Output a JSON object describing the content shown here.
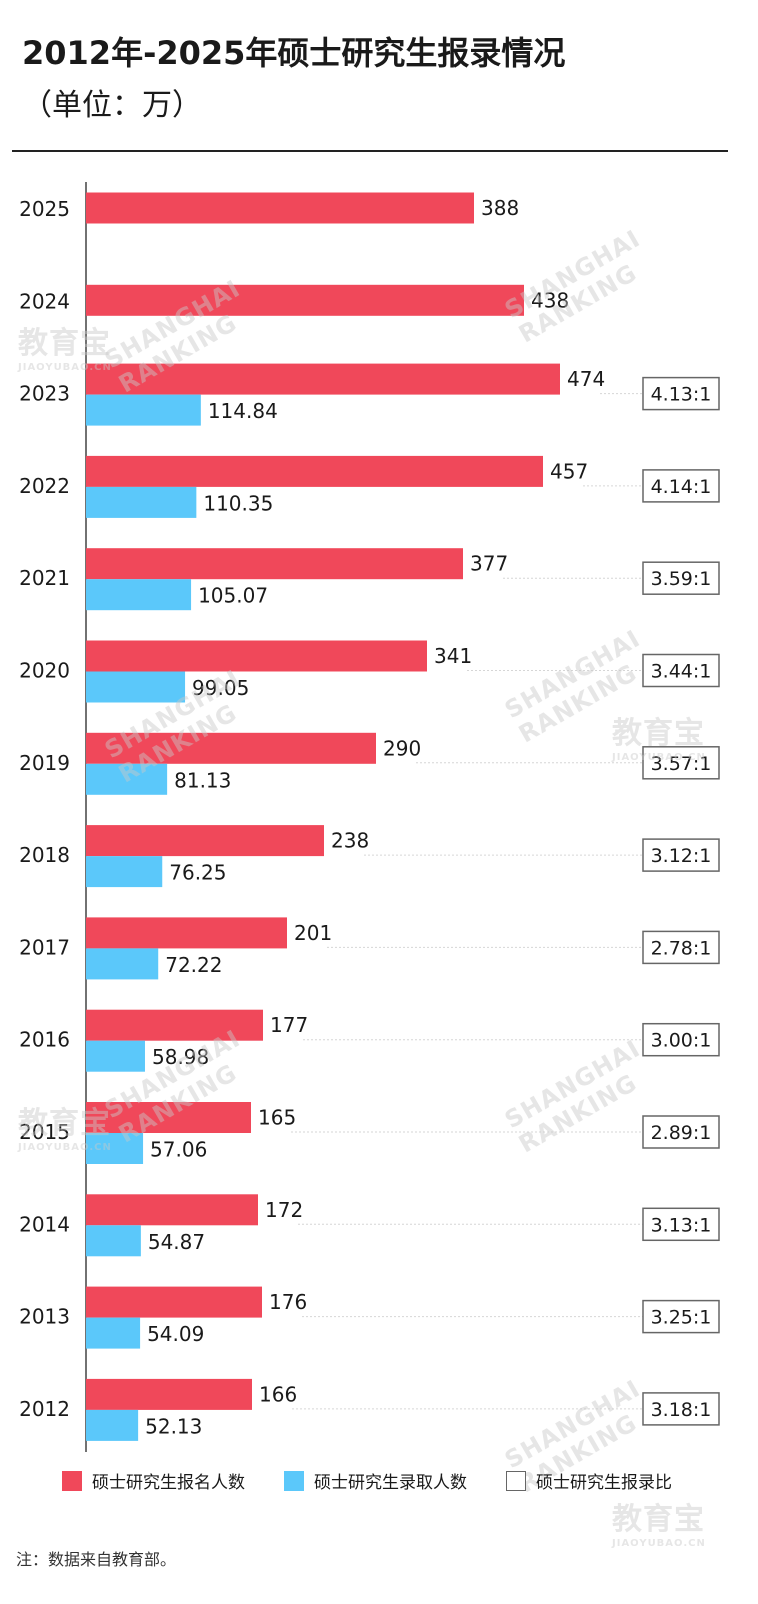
{
  "chart_data": {
    "type": "bar",
    "orientation": "horizontal",
    "title": "2012年-2025年硕士研究生报录情况",
    "subtitle": "（单位：万）",
    "categories": [
      "2025",
      "2024",
      "2023",
      "2022",
      "2021",
      "2020",
      "2019",
      "2018",
      "2017",
      "2016",
      "2015",
      "2014",
      "2013",
      "2012"
    ],
    "series": [
      {
        "name": "硕士研究生报名人数",
        "color": "#f0485a",
        "values": [
          388,
          438,
          474,
          457,
          377,
          341,
          290,
          238,
          201,
          177,
          165,
          172,
          176,
          166
        ]
      },
      {
        "name": "硕士研究生录取人数",
        "color": "#5bc8fa",
        "values": [
          null,
          null,
          114.84,
          110.35,
          105.07,
          99.05,
          81.13,
          76.25,
          72.22,
          58.98,
          57.06,
          54.87,
          54.09,
          52.13
        ]
      }
    ],
    "value_labels": {
      "applicants": [
        "388",
        "438",
        "474",
        "457",
        "377",
        "341",
        "290",
        "238",
        "201",
        "177",
        "165",
        "172",
        "176",
        "166"
      ],
      "admitted": [
        "",
        "",
        "114.84",
        "110.35",
        "105.07",
        "99.05",
        "81.13",
        "76.25",
        "72.22",
        "58.98",
        "57.06",
        "54.87",
        "54.09",
        "52.13"
      ]
    },
    "ratio": {
      "name": "硕士研究生报录比",
      "values": [
        "",
        "",
        "4.13:1",
        "4.14:1",
        "3.59:1",
        "3.44:1",
        "3.57:1",
        "3.12:1",
        "2.78:1",
        "3.00:1",
        "2.89:1",
        "3.13:1",
        "3.25:1",
        "3.18:1"
      ]
    },
    "xlim": [
      0,
      480
    ],
    "grid": false,
    "legend": "bottom"
  },
  "header": {
    "title": "2012年-2025年硕士研究生报录情况",
    "subtitle": "（单位：万）"
  },
  "legend": {
    "applicants": "硕士研究生报名人数",
    "admitted": "硕士研究生录取人数",
    "ratio": "硕士研究生报录比"
  },
  "footer": {
    "note": "注：数据来自教育部。"
  },
  "watermarks": {
    "jyb": "教育宝",
    "jyb_sub": "JIAOYUBAO.CN",
    "sh1": "SHANGHAI",
    "sh2": "RANKING"
  },
  "colors": {
    "applicants": "#f0485a",
    "admitted": "#5bc8fa",
    "ratio_border": "#666666",
    "axis": "#444444"
  }
}
